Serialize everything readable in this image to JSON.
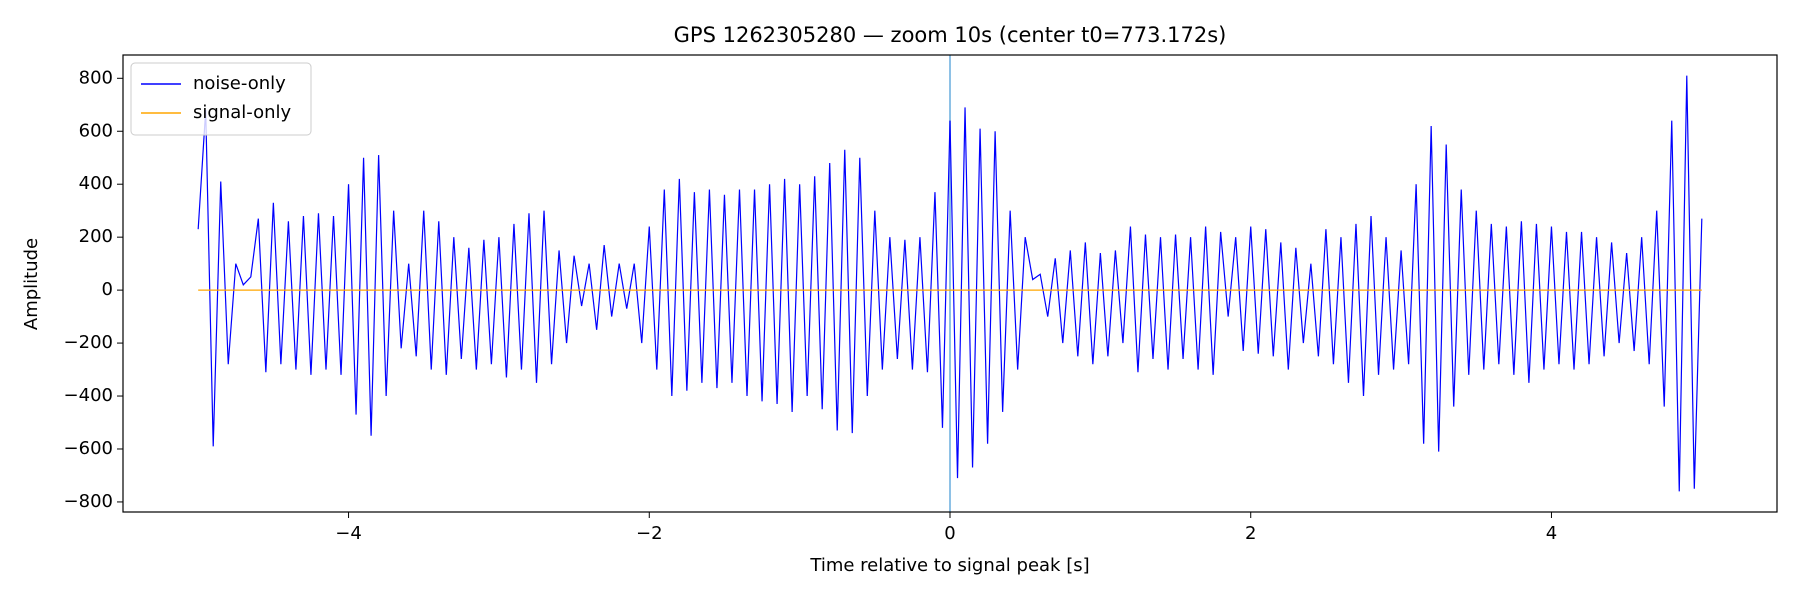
{
  "chart_data": {
    "type": "line",
    "title": "GPS 1262305280 — zoom 10s (center t0=773.172s)",
    "xlabel": "Time relative to signal peak [s]",
    "ylabel": "Amplitude",
    "xlim": [
      -5.5,
      5.5
    ],
    "ylim": [
      -838,
      888
    ],
    "xticks": [
      {
        "value": -4,
        "label": "−4"
      },
      {
        "value": -2,
        "label": "−2"
      },
      0,
      2,
      4
    ],
    "yticks": [
      {
        "value": -800,
        "label": "−800"
      },
      {
        "value": -600,
        "label": "−600"
      },
      {
        "value": -400,
        "label": "−400"
      },
      {
        "value": -200,
        "label": "−200"
      },
      0,
      200,
      400,
      600,
      800
    ],
    "legend": "upper left",
    "vline": {
      "x": 0,
      "color": "#8ec1e6"
    },
    "x": [
      -5,
      -4.95,
      -4.9,
      -4.85,
      -4.8,
      -4.75,
      -4.7,
      -4.65,
      -4.6,
      -4.55,
      -4.5,
      -4.45,
      -4.4,
      -4.35,
      -4.3,
      -4.25,
      -4.2,
      -4.15,
      -4.1,
      -4.05,
      -4,
      -3.95,
      -3.9,
      -3.85,
      -3.8,
      -3.75,
      -3.7,
      -3.65,
      -3.6,
      -3.55,
      -3.5,
      -3.45,
      -3.4,
      -3.35,
      -3.3,
      -3.25,
      -3.2,
      -3.15,
      -3.1,
      -3.05,
      -3,
      -2.95,
      -2.9,
      -2.85,
      -2.8,
      -2.75,
      -2.7,
      -2.65,
      -2.6,
      -2.55,
      -2.5,
      -2.45,
      -2.4,
      -2.35,
      -2.3,
      -2.25,
      -2.2,
      -2.15,
      -2.1,
      -2.05,
      -2,
      -1.95,
      -1.9,
      -1.85,
      -1.8,
      -1.75,
      -1.7,
      -1.65,
      -1.6,
      -1.55,
      -1.5,
      -1.45,
      -1.4,
      -1.35,
      -1.3,
      -1.25,
      -1.2,
      -1.15,
      -1.1,
      -1.05,
      -1,
      -0.95,
      -0.9,
      -0.85,
      -0.8,
      -0.75,
      -0.7,
      -0.65,
      -0.6,
      -0.55,
      -0.5,
      -0.45,
      -0.4,
      -0.35,
      -0.3,
      -0.25,
      -0.2,
      -0.15,
      -0.1,
      -0.05,
      0,
      0.05,
      0.1,
      0.15,
      0.2,
      0.25,
      0.3,
      0.35,
      0.4,
      0.45,
      0.5,
      0.55,
      0.6,
      0.65,
      0.7,
      0.75,
      0.8,
      0.85,
      0.9,
      0.95,
      1,
      1.05,
      1.1,
      1.15,
      1.2,
      1.25,
      1.3,
      1.35,
      1.4,
      1.45,
      1.5,
      1.55,
      1.6,
      1.65,
      1.7,
      1.75,
      1.8,
      1.85,
      1.9,
      1.95,
      2,
      2.05,
      2.1,
      2.15,
      2.2,
      2.25,
      2.3,
      2.35,
      2.4,
      2.45,
      2.5,
      2.55,
      2.6,
      2.65,
      2.7,
      2.75,
      2.8,
      2.85,
      2.9,
      2.95,
      3,
      3.05,
      3.1,
      3.15,
      3.2,
      3.25,
      3.3,
      3.35,
      3.4,
      3.45,
      3.5,
      3.55,
      3.6,
      3.65,
      3.7,
      3.75,
      3.8,
      3.85,
      3.9,
      3.95,
      4,
      4.05,
      4.1,
      4.15,
      4.2,
      4.25,
      4.3,
      4.35,
      4.4,
      4.45,
      4.5,
      4.55,
      4.6,
      4.65,
      4.7,
      4.75,
      4.8,
      4.85,
      4.9,
      4.95,
      5
    ],
    "series": [
      {
        "name": "noise-only",
        "color": "#0000ff",
        "values": [
          230,
          680,
          -590,
          410,
          -280,
          100,
          20,
          50,
          270,
          -310,
          330,
          -280,
          260,
          -300,
          280,
          -320,
          290,
          -300,
          280,
          -320,
          400,
          -470,
          500,
          -550,
          510,
          -400,
          300,
          -220,
          100,
          -250,
          300,
          -300,
          260,
          -320,
          200,
          -260,
          160,
          -300,
          190,
          -280,
          200,
          -330,
          250,
          -300,
          290,
          -350,
          300,
          -280,
          150,
          -200,
          130,
          -60,
          100,
          -150,
          170,
          -100,
          100,
          -70,
          100,
          -200,
          240,
          -300,
          380,
          -400,
          420,
          -380,
          370,
          -350,
          380,
          -370,
          360,
          -350,
          380,
          -400,
          380,
          -420,
          400,
          -430,
          420,
          -460,
          400,
          -400,
          430,
          -450,
          480,
          -530,
          530,
          -540,
          500,
          -400,
          300,
          -300,
          200,
          -260,
          190,
          -300,
          200,
          -310,
          370,
          -520,
          640,
          -710,
          690,
          -670,
          610,
          -580,
          600,
          -460,
          300,
          -300,
          200,
          40,
          60,
          -100,
          120,
          -200,
          150,
          -250,
          180,
          -280,
          140,
          -250,
          150,
          -200,
          240,
          -310,
          210,
          -260,
          200,
          -300,
          210,
          -260,
          200,
          -300,
          240,
          -320,
          220,
          -100,
          200,
          -230,
          240,
          -240,
          230,
          -250,
          180,
          -300,
          160,
          -200,
          100,
          -250,
          230,
          -280,
          200,
          -350,
          250,
          -400,
          280,
          -320,
          200,
          -300,
          150,
          -280,
          400,
          -580,
          620,
          -610,
          550,
          -440,
          380,
          -320,
          300,
          -300,
          250,
          -280,
          240,
          -320,
          260,
          -350,
          250,
          -300,
          240,
          -280,
          220,
          -300,
          220,
          -280,
          200,
          -250,
          180,
          -200,
          140,
          -230,
          200,
          -280,
          300,
          -440,
          640,
          -760,
          810,
          -750,
          270
        ]
      },
      {
        "name": "signal-only",
        "color": "#ffa500",
        "values": [
          0,
          0,
          0,
          0,
          0,
          0,
          0,
          0,
          0,
          0,
          0,
          0,
          0,
          0,
          0,
          0,
          0,
          0,
          0,
          0,
          0,
          0,
          0,
          0,
          0,
          0,
          0,
          0,
          0,
          0,
          0,
          0,
          0,
          0,
          0,
          0,
          0,
          0,
          0,
          0,
          0,
          0,
          0,
          0,
          0,
          0,
          0,
          0,
          0,
          0,
          0,
          0,
          0,
          0,
          0,
          0,
          0,
          0,
          0,
          0,
          0,
          0,
          0,
          0,
          0,
          0,
          0,
          0,
          0,
          0,
          0,
          0,
          0,
          0,
          0,
          0,
          0,
          0,
          0,
          0,
          0,
          0,
          0,
          0,
          0,
          0,
          0,
          0,
          0,
          0,
          0,
          0,
          0,
          0,
          0,
          0,
          0,
          0,
          0,
          0,
          0,
          0,
          0,
          0,
          0,
          0,
          0,
          0,
          0,
          0,
          0,
          0,
          0,
          0,
          0,
          0,
          0,
          0,
          0,
          0,
          0,
          0,
          0,
          0,
          0,
          0,
          0,
          0,
          0,
          0,
          0,
          0,
          0,
          0,
          0,
          0,
          0,
          0,
          0,
          0,
          0,
          0,
          0,
          0,
          0,
          0,
          0,
          0,
          0,
          0,
          0,
          0,
          0,
          0,
          0,
          0,
          0,
          0,
          0,
          0,
          0,
          0,
          0,
          0,
          0,
          0,
          0,
          0,
          0,
          0,
          0,
          0,
          0,
          0,
          0,
          0,
          0,
          0,
          0,
          0,
          0,
          0,
          0,
          0,
          0,
          0,
          0,
          0,
          0,
          0,
          0,
          0,
          0,
          0,
          0,
          0,
          0,
          0,
          0,
          0,
          0
        ]
      }
    ]
  }
}
